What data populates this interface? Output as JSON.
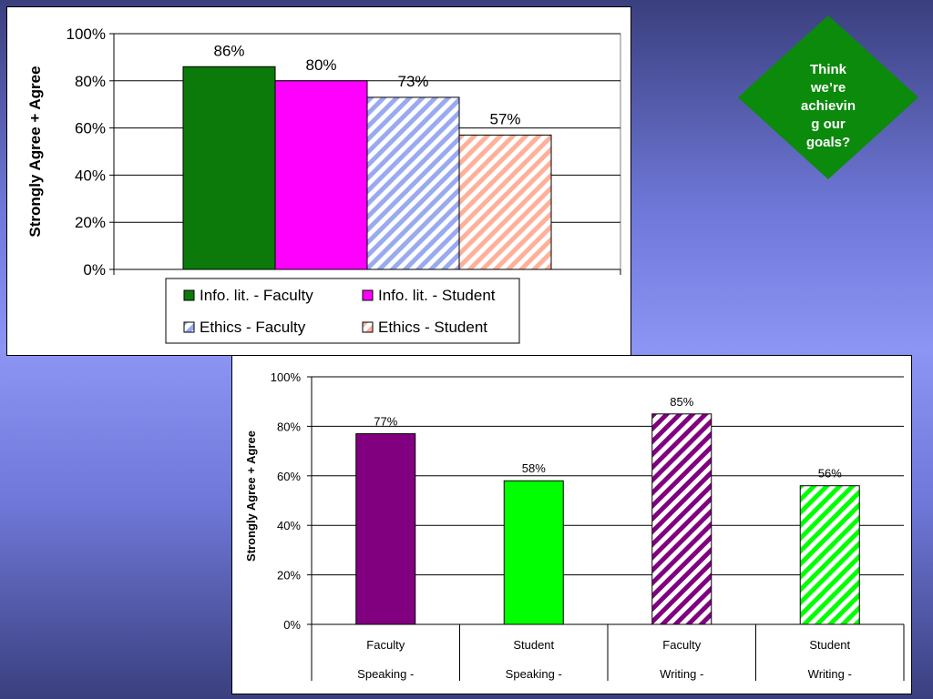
{
  "callout": {
    "text": "Think\nwe’re\nachievin\ng our\ngoals?",
    "fill": "#0b8a0b"
  },
  "chart_data": [
    {
      "type": "bar",
      "title": "",
      "ylabel": "Strongly Agree + Agree",
      "xlabel": "",
      "ylim": [
        0,
        100
      ],
      "yticks": [
        "0%",
        "20%",
        "40%",
        "60%",
        "80%",
        "100%"
      ],
      "grid": true,
      "legend_position": "bottom",
      "series": [
        {
          "name": "Info. lit. - Faculty",
          "value": 86,
          "label": "86%",
          "color": "#0b7a0b",
          "pattern": "solid"
        },
        {
          "name": "Info. lit. - Student",
          "value": 80,
          "label": "80%",
          "color": "#ff00ff",
          "pattern": "solid"
        },
        {
          "name": "Ethics - Faculty",
          "value": 73,
          "label": "73%",
          "color": "#99aaf0",
          "pattern": "diagonal-stripes"
        },
        {
          "name": "Ethics - Student",
          "value": 57,
          "label": "57%",
          "color": "#ffb09a",
          "pattern": "diagonal-stripes"
        }
      ]
    },
    {
      "type": "bar",
      "title": "",
      "ylabel": "Strongly Agree + Agree",
      "xlabel": "",
      "ylim": [
        0,
        100
      ],
      "yticks": [
        "0%",
        "20%",
        "40%",
        "60%",
        "80%",
        "100%"
      ],
      "grid": true,
      "categories": [
        {
          "line1": "Faculty",
          "line2": "Speaking -",
          "value": 77,
          "label": "77%",
          "color": "#800080",
          "pattern": "solid"
        },
        {
          "line1": "Student",
          "line2": "Speaking -",
          "value": 58,
          "label": "58%",
          "color": "#00ff00",
          "pattern": "solid"
        },
        {
          "line1": "Faculty",
          "line2": "Writing -",
          "value": 85,
          "label": "85%",
          "color": "#800080",
          "pattern": "diagonal-stripes"
        },
        {
          "line1": "Student",
          "line2": "Writing -",
          "value": 56,
          "label": "56%",
          "color": "#00ff00",
          "pattern": "diagonal-stripes"
        }
      ]
    }
  ]
}
